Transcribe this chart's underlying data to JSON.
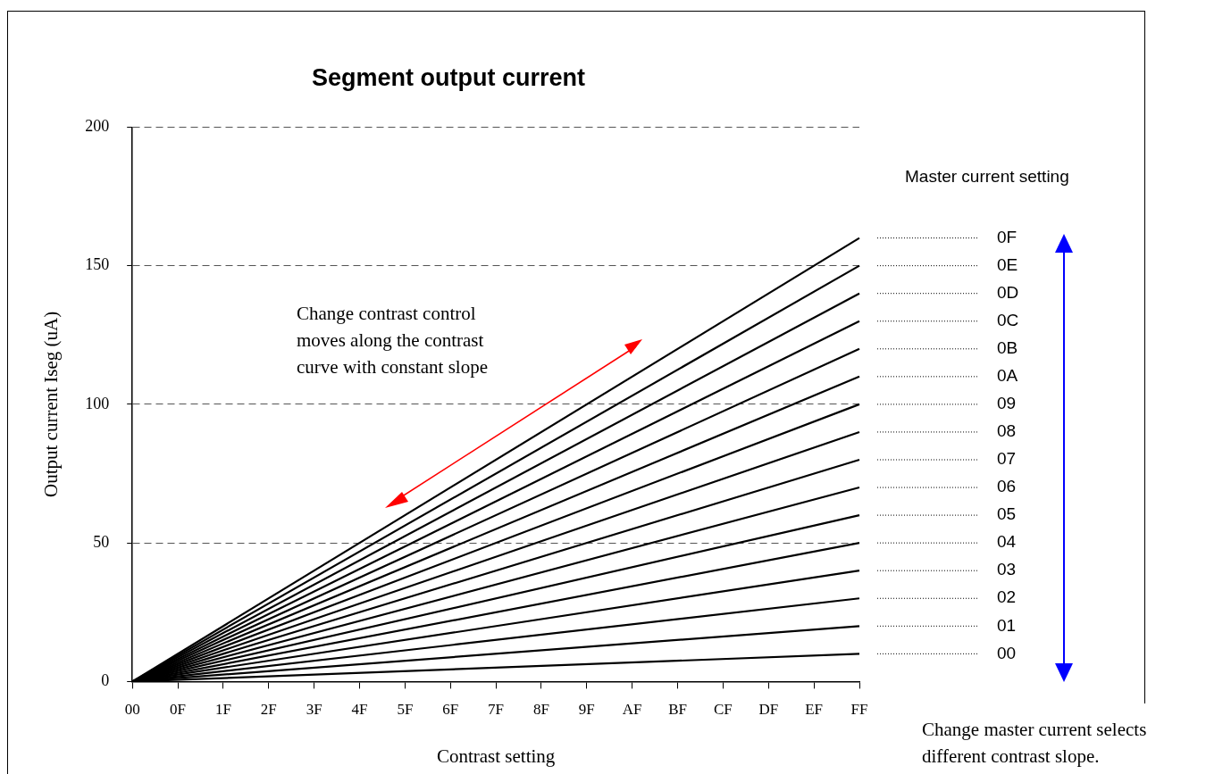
{
  "chart_data": {
    "type": "line",
    "title": "Segment output current",
    "xlabel": "Contrast setting",
    "ylabel": "Output current Iseg (uA)",
    "legend_title": "Master current setting",
    "categories": [
      "00",
      "0F",
      "1F",
      "2F",
      "3F",
      "4F",
      "5F",
      "6F",
      "7F",
      "8F",
      "9F",
      "AF",
      "BF",
      "CF",
      "DF",
      "EF",
      "FF"
    ],
    "ylim": [
      0,
      200
    ],
    "yticks": [
      0,
      50,
      100,
      150,
      200
    ],
    "grid": "y",
    "legend": false,
    "marker": "none",
    "series": [
      {
        "name": "0F",
        "color": "#000000",
        "x": [
          "00",
          "FF"
        ],
        "values": [
          0,
          160
        ]
      },
      {
        "name": "0E",
        "color": "#000000",
        "x": [
          "00",
          "FF"
        ],
        "values": [
          0,
          150
        ]
      },
      {
        "name": "0D",
        "color": "#000000",
        "x": [
          "00",
          "FF"
        ],
        "values": [
          0,
          140
        ]
      },
      {
        "name": "0C",
        "color": "#000000",
        "x": [
          "00",
          "FF"
        ],
        "values": [
          0,
          130
        ]
      },
      {
        "name": "0B",
        "color": "#000000",
        "x": [
          "00",
          "FF"
        ],
        "values": [
          0,
          120
        ]
      },
      {
        "name": "0A",
        "color": "#000000",
        "x": [
          "00",
          "FF"
        ],
        "values": [
          0,
          110
        ]
      },
      {
        "name": "09",
        "color": "#000000",
        "x": [
          "00",
          "FF"
        ],
        "values": [
          0,
          100
        ]
      },
      {
        "name": "08",
        "color": "#000000",
        "x": [
          "00",
          "FF"
        ],
        "values": [
          0,
          90
        ]
      },
      {
        "name": "07",
        "color": "#000000",
        "x": [
          "00",
          "FF"
        ],
        "values": [
          0,
          80
        ]
      },
      {
        "name": "06",
        "color": "#000000",
        "x": [
          "00",
          "FF"
        ],
        "values": [
          0,
          70
        ]
      },
      {
        "name": "05",
        "color": "#000000",
        "x": [
          "00",
          "FF"
        ],
        "values": [
          0,
          60
        ]
      },
      {
        "name": "04",
        "color": "#000000",
        "x": [
          "00",
          "FF"
        ],
        "values": [
          0,
          50
        ]
      },
      {
        "name": "03",
        "color": "#000000",
        "x": [
          "00",
          "FF"
        ],
        "values": [
          0,
          40
        ]
      },
      {
        "name": "02",
        "color": "#000000",
        "x": [
          "00",
          "FF"
        ],
        "values": [
          0,
          30
        ]
      },
      {
        "name": "01",
        "color": "#000000",
        "x": [
          "00",
          "FF"
        ],
        "values": [
          0,
          20
        ]
      },
      {
        "name": "00",
        "color": "#000000",
        "x": [
          "00",
          "FF"
        ],
        "values": [
          0,
          10
        ]
      }
    ],
    "annotations": [
      "Change contrast control\nmoves along the contrast\ncurve with constant slope",
      "Change master current selects\ndifferent contrast slope."
    ]
  }
}
